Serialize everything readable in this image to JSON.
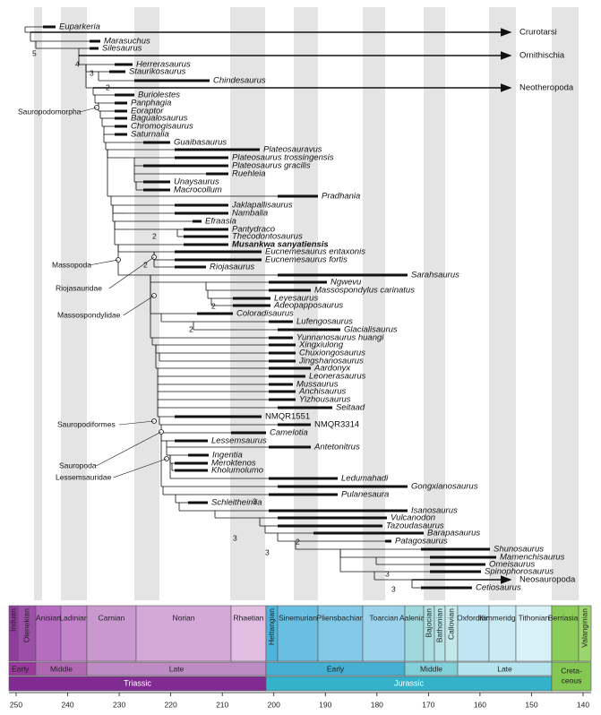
{
  "taxa": [
    "Euparkeria",
    "Crurotarsi",
    "Marasuchus",
    "Silesaurus",
    "Ornithischia",
    "Herrerasaurus",
    "Staurikosaurus",
    "Chindesaurus",
    "Neotheropoda",
    "Buriolestes",
    "Panphagia",
    "Eoraptor",
    "Bagualosaurus",
    "Chromogisaurus",
    "Saturnalia",
    "Guaibasaurus",
    "Plateosauravus",
    "Plateosaurus trossingensis",
    "Plateosaurus gracilis",
    "Ruehleia",
    "Unaysaurus",
    "Macrocollum",
    "Pradhania",
    "Jaklapallisaurus",
    "Nambalia",
    "Efraasia",
    "Pantydraco",
    "Thecodontosaurus",
    "Musankwa sanyatiensis",
    "Eucnemesaurus entaxonis",
    "Eucnemesaurus fortis",
    "Riojasaurus",
    "Sarahsaurus",
    "Ngwevu",
    "Massospondylus carinatus",
    "Leyesaurus",
    "Adeopapposaurus",
    "Coloradisaurus",
    "Lufengosaurus",
    "Glacialisaurus",
    "Yunnanosaurus huangi",
    "Xingxiulong",
    "Chuxiongosaurus",
    "Jingshanosaurus",
    "Aardonyx",
    "Leonerasaurus",
    "Mussaurus",
    "Anchisaurus",
    "Yizhousaurus",
    "Seitaad",
    "NMQR1551",
    "NMQR3314",
    "Camelotia",
    "Lessemsaurus",
    "Antetonitrus",
    "Ingentia",
    "Meroktenos",
    "Kholumolumo",
    "Ledumahadi",
    "Gongxianosaurus",
    "Pulanesaura",
    "Schleitheimia",
    "Isanosaurus",
    "Vulcanodon",
    "Tazoudasaurus",
    "Barapasaurus",
    "Patagosaurus",
    "Shunosaurus",
    "Mamenchisaurus",
    "Omeisaurus",
    "Spinophorosaurus",
    "Neosauropoda",
    "Cetiosaurus"
  ],
  "clades": [
    "Sauropodomorpha",
    "Massopoda",
    "Riojasauridae",
    "Massospondylidae",
    "Sauropodiformes",
    "Sauropoda",
    "Lessemsauridae"
  ],
  "node_support": [
    5,
    4,
    3,
    2,
    2,
    2,
    2,
    2,
    3,
    3,
    2,
    3,
    3,
    3
  ],
  "stages": [
    "Induan",
    "Olenekian",
    "Anisian",
    "Ladinian",
    "Carnian",
    "Norian",
    "Rhaetian",
    "Hettangian",
    "Sinemurian",
    "Pliensbachian",
    "Toarcian",
    "Aalenian",
    "Bajocian",
    "Bathonian",
    "Callovian",
    "Oxfordian",
    "Kimmeridgian",
    "Tithonian",
    "Berriasian",
    "Valanginian"
  ],
  "epochs": [
    "Early",
    "Middle",
    "Late",
    "Early",
    "Middle",
    "Late"
  ],
  "periods": [
    [
      "Triassic"
    ],
    [
      "Jurassic"
    ],
    [
      "Creta-",
      "ceous"
    ]
  ],
  "time_axis": {
    "ticks": [
      250,
      240,
      230,
      220,
      210,
      200,
      190,
      180,
      170,
      160,
      150,
      140
    ]
  }
}
